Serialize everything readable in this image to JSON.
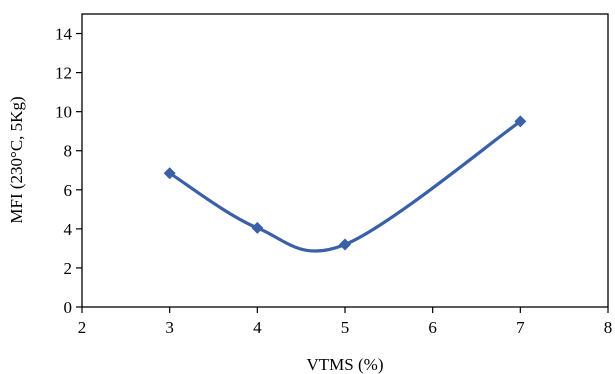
{
  "chart_data": {
    "type": "line",
    "smooth": true,
    "xlabel": "VTMS (%)",
    "ylabel": "MFI (230°C, 5Kg)",
    "xlim": [
      2,
      8
    ],
    "ylim": [
      0,
      15
    ],
    "xticks": [
      2,
      3,
      4,
      5,
      6,
      7,
      8
    ],
    "yticks": [
      0,
      2,
      4,
      6,
      8,
      10,
      12,
      14
    ],
    "grid": false,
    "series": [
      {
        "marker": "diamond",
        "color": "#3a60a8",
        "points": [
          {
            "x": 3,
            "y": 6.85
          },
          {
            "x": 4,
            "y": 4.05
          },
          {
            "x": 5,
            "y": 3.2
          },
          {
            "x": 7,
            "y": 9.5
          }
        ]
      }
    ]
  }
}
